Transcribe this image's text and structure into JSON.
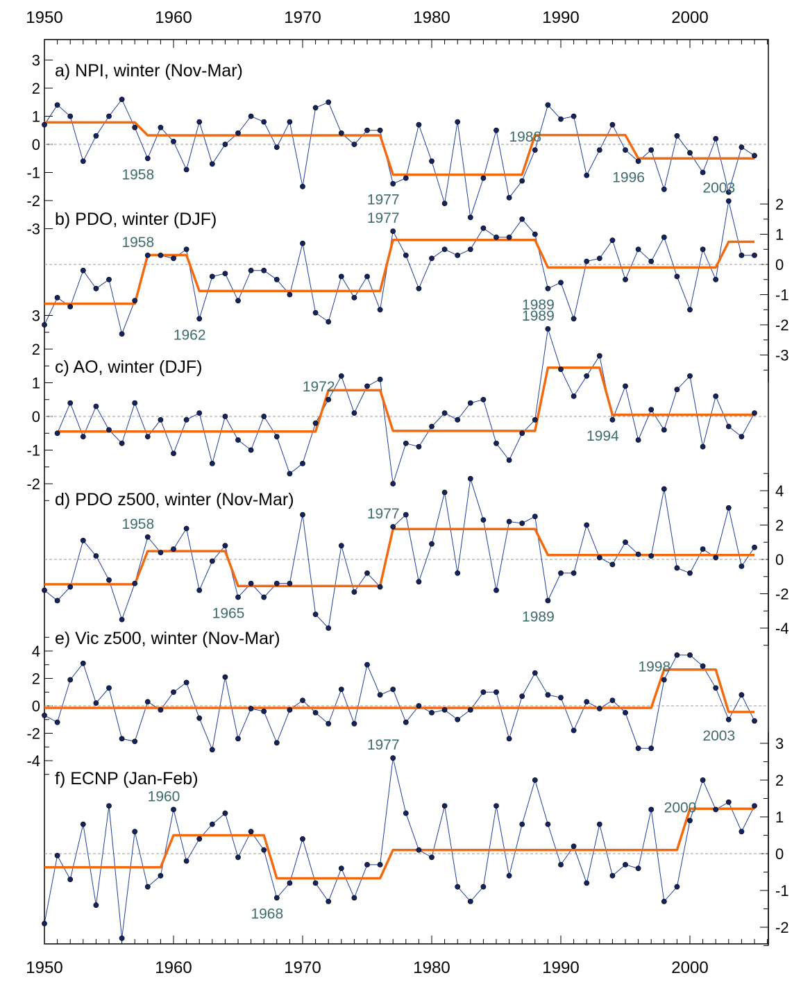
{
  "colors": {
    "series_line": "#1f3d99",
    "marker_fill": "#13235e",
    "regime_line": "#f26a10",
    "annotation_text": "#3d6b6b",
    "zero_line": "#9a9a9a",
    "frame": "#000000"
  },
  "chart_data": [
    {
      "type": "line",
      "title": "a) NPI, winter (Nov-Mar)",
      "y_axis_side": "left",
      "ytick_labels": [
        "3",
        "2",
        "1",
        "0",
        "-1",
        "-2",
        "-3"
      ],
      "x": [
        1950,
        1951,
        1952,
        1953,
        1954,
        1955,
        1956,
        1957,
        1958,
        1959,
        1960,
        1961,
        1962,
        1963,
        1964,
        1965,
        1966,
        1967,
        1968,
        1969,
        1970,
        1971,
        1972,
        1973,
        1974,
        1975,
        1976,
        1977,
        1978,
        1979,
        1980,
        1981,
        1982,
        1983,
        1984,
        1985,
        1986,
        1987,
        1988,
        1989,
        1990,
        1991,
        1992,
        1993,
        1994,
        1995,
        1996,
        1997,
        1998,
        1999,
        2000,
        2001,
        2002,
        2003,
        2004,
        2005
      ],
      "series": [
        {
          "values": [
            0.7,
            1.4,
            1.0,
            -0.6,
            0.3,
            1.0,
            1.6,
            0.6,
            -0.5,
            0.6,
            0.1,
            -0.9,
            0.8,
            -0.7,
            0.0,
            0.4,
            1.0,
            0.8,
            -0.1,
            0.8,
            -1.5,
            1.3,
            1.5,
            0.4,
            0.0,
            0.5,
            0.5,
            -1.4,
            -1.2,
            0.7,
            -0.6,
            -2.1,
            0.8,
            -2.6,
            -1.2,
            0.5,
            -1.9,
            -1.3,
            -0.2,
            1.4,
            0.9,
            1.0,
            -1.1,
            -0.2,
            0.7,
            -0.2,
            -0.6,
            -0.2,
            -1.6,
            0.3,
            -0.3,
            -1.0,
            0.2,
            -1.7,
            -0.1,
            -0.4
          ]
        }
      ],
      "regime_shifts": [
        {
          "start": 1950,
          "end": 1957,
          "mean": 0.78
        },
        {
          "start": 1958,
          "end": 1976,
          "mean": 0.32
        },
        {
          "start": 1977,
          "end": 1987,
          "mean": -1.08
        },
        {
          "start": 1988,
          "end": 1995,
          "mean": 0.33
        },
        {
          "start": 1996,
          "end": 2005,
          "mean": -0.5
        }
      ],
      "annotations": [
        {
          "text": "1958",
          "year": 1958,
          "position": "below"
        },
        {
          "text": "1977",
          "year": 1977,
          "position": "below"
        },
        {
          "text": "1988",
          "year": 1988,
          "position": "above"
        },
        {
          "text": "1996",
          "year": 1996,
          "position": "below"
        }
      ]
    },
    {
      "type": "line",
      "title": "b) PDO, winter (DJF)",
      "y_axis_side": "right",
      "ytick_labels": [
        "2",
        "1",
        "0",
        "-1",
        "-2",
        "-3"
      ],
      "x": [
        1950,
        1951,
        1952,
        1953,
        1954,
        1955,
        1956,
        1957,
        1958,
        1959,
        1960,
        1961,
        1962,
        1963,
        1964,
        1965,
        1966,
        1967,
        1968,
        1969,
        1970,
        1971,
        1972,
        1973,
        1974,
        1975,
        1976,
        1977,
        1978,
        1979,
        1980,
        1981,
        1982,
        1983,
        1984,
        1985,
        1986,
        1987,
        1988,
        1989,
        1990,
        1991,
        1992,
        1993,
        1994,
        1995,
        1996,
        1997,
        1998,
        1999,
        2000,
        2001,
        2002,
        2003,
        2004,
        2005
      ],
      "series": [
        {
          "values": [
            -2.0,
            -1.1,
            -1.4,
            -0.2,
            -0.8,
            -0.5,
            -2.3,
            -1.2,
            0.3,
            0.3,
            0.2,
            0.5,
            -1.8,
            -0.4,
            -0.3,
            -1.2,
            -0.2,
            -0.2,
            -0.5,
            -1.0,
            0.7,
            -1.6,
            -1.9,
            -0.4,
            -1.1,
            -0.4,
            -1.5,
            1.1,
            0.3,
            -0.8,
            0.2,
            0.5,
            0.3,
            0.5,
            1.2,
            0.9,
            0.9,
            1.5,
            1.0,
            -0.8,
            -0.6,
            -1.8,
            0.1,
            0.2,
            0.8,
            -0.5,
            0.5,
            0.1,
            0.9,
            -0.4,
            -1.5,
            0.5,
            -0.5,
            2.1,
            0.3,
            0.3
          ]
        }
      ],
      "regime_shifts": [
        {
          "start": 1950,
          "end": 1957,
          "mean": -1.3
        },
        {
          "start": 1958,
          "end": 1961,
          "mean": 0.31
        },
        {
          "start": 1962,
          "end": 1976,
          "mean": -0.88
        },
        {
          "start": 1977,
          "end": 1988,
          "mean": 0.81
        },
        {
          "start": 1989,
          "end": 2002,
          "mean": -0.1
        },
        {
          "start": 2003,
          "end": 2005,
          "mean": 0.75
        }
      ],
      "annotations": [
        {
          "text": "1958",
          "year": 1958,
          "position": "above"
        },
        {
          "text": "1962",
          "year": 1962,
          "position": "below"
        },
        {
          "text": "1977",
          "year": 1977,
          "position": "above"
        },
        {
          "text": "1989",
          "year": 1989,
          "position": "below"
        },
        {
          "text": "2003",
          "year": 2003,
          "position": "above"
        }
      ]
    },
    {
      "type": "line",
      "title": "c) AO, winter (DJF)",
      "y_axis_side": "left",
      "ytick_labels": [
        "3",
        "2",
        "1",
        "0",
        "-1",
        "-2"
      ],
      "x": [
        1950,
        1951,
        1952,
        1953,
        1954,
        1955,
        1956,
        1957,
        1958,
        1959,
        1960,
        1961,
        1962,
        1963,
        1964,
        1965,
        1966,
        1967,
        1968,
        1969,
        1970,
        1971,
        1972,
        1973,
        1974,
        1975,
        1976,
        1977,
        1978,
        1979,
        1980,
        1981,
        1982,
        1983,
        1984,
        1985,
        1986,
        1987,
        1988,
        1989,
        1990,
        1991,
        1992,
        1993,
        1994,
        1995,
        1996,
        1997,
        1998,
        1999,
        2000,
        2001,
        2002,
        2003,
        2004,
        2005
      ],
      "series": [
        {
          "values": [
            null,
            -0.5,
            0.4,
            -0.6,
            0.3,
            -0.4,
            -0.8,
            0.4,
            -0.6,
            -0.1,
            -1.1,
            -0.1,
            0.1,
            -1.4,
            0.0,
            -0.7,
            -1.0,
            0.0,
            -0.6,
            -1.7,
            -1.4,
            -0.2,
            0.5,
            1.2,
            0.1,
            0.9,
            1.1,
            -2.0,
            -0.8,
            -0.9,
            -0.3,
            0.1,
            -0.1,
            0.4,
            0.5,
            -0.8,
            -1.3,
            -0.5,
            -0.1,
            2.6,
            1.4,
            0.6,
            1.2,
            1.8,
            -0.1,
            0.9,
            -0.7,
            0.2,
            -0.4,
            0.8,
            1.2,
            -0.9,
            0.6,
            -0.3,
            -0.6,
            0.1
          ]
        }
      ],
      "regime_shifts": [
        {
          "start": 1951,
          "end": 1971,
          "mean": -0.45
        },
        {
          "start": 1972,
          "end": 1976,
          "mean": 0.78
        },
        {
          "start": 1977,
          "end": 1988,
          "mean": -0.43
        },
        {
          "start": 1989,
          "end": 1993,
          "mean": 1.45
        },
        {
          "start": 1994,
          "end": 2005,
          "mean": 0.05
        }
      ],
      "annotations": [
        {
          "text": "1972",
          "year": 1972,
          "position": "above"
        },
        {
          "text": "1989",
          "year": 1989,
          "position": "above"
        },
        {
          "text": "1994",
          "year": 1994,
          "position": "below"
        }
      ]
    },
    {
      "type": "line",
      "title": "d) PDO z500, winter (Nov-Mar)",
      "y_axis_side": "right",
      "ytick_labels": [
        "4",
        "2",
        "0",
        "-2",
        "-4"
      ],
      "x": [
        1950,
        1951,
        1952,
        1953,
        1954,
        1955,
        1956,
        1957,
        1958,
        1959,
        1960,
        1961,
        1962,
        1963,
        1964,
        1965,
        1966,
        1967,
        1968,
        1969,
        1970,
        1971,
        1972,
        1973,
        1974,
        1975,
        1976,
        1977,
        1978,
        1979,
        1980,
        1981,
        1982,
        1983,
        1984,
        1985,
        1986,
        1987,
        1988,
        1989,
        1990,
        1991,
        1992,
        1993,
        1994,
        1995,
        1996,
        1997,
        1998,
        1999,
        2000,
        2001,
        2002,
        2003,
        2004,
        2005
      ],
      "series": [
        {
          "values": [
            -1.8,
            -2.4,
            -1.6,
            1.1,
            0.2,
            -1.2,
            -3.5,
            -1.4,
            1.3,
            0.4,
            0.6,
            1.8,
            -1.8,
            -0.1,
            0.8,
            -2.2,
            -1.4,
            -2.2,
            -1.4,
            -1.4,
            2.6,
            -3.2,
            -4.0,
            0.8,
            -1.9,
            -0.8,
            -1.6,
            1.9,
            2.6,
            -1.3,
            0.9,
            3.9,
            -0.8,
            4.7,
            2.3,
            -1.8,
            2.2,
            2.1,
            2.5,
            -2.4,
            -0.8,
            -0.8,
            2.0,
            0.1,
            -0.3,
            1.0,
            0.3,
            0.2,
            4.1,
            -0.5,
            -0.8,
            0.6,
            0.1,
            3.0,
            -0.4,
            0.7
          ]
        }
      ],
      "regime_shifts": [
        {
          "start": 1950,
          "end": 1957,
          "mean": -1.45
        },
        {
          "start": 1958,
          "end": 1964,
          "mean": 0.48
        },
        {
          "start": 1965,
          "end": 1976,
          "mean": -1.55
        },
        {
          "start": 1977,
          "end": 1988,
          "mean": 1.77
        },
        {
          "start": 1989,
          "end": 2005,
          "mean": 0.25
        }
      ],
      "annotations": [
        {
          "text": "1958",
          "year": 1958,
          "position": "above"
        },
        {
          "text": "1965",
          "year": 1965,
          "position": "below"
        },
        {
          "text": "1977",
          "year": 1977,
          "position": "above"
        },
        {
          "text": "1989",
          "year": 1989,
          "position": "below"
        }
      ]
    },
    {
      "type": "line",
      "title": "e) Vic z500, winter (Nov-Mar)",
      "y_axis_side": "left",
      "ytick_labels": [
        "4",
        "2",
        "0",
        "-2",
        "-4"
      ],
      "x": [
        1950,
        1951,
        1952,
        1953,
        1954,
        1955,
        1956,
        1957,
        1958,
        1959,
        1960,
        1961,
        1962,
        1963,
        1964,
        1965,
        1966,
        1967,
        1968,
        1969,
        1970,
        1971,
        1972,
        1973,
        1974,
        1975,
        1976,
        1977,
        1978,
        1979,
        1980,
        1981,
        1982,
        1983,
        1984,
        1985,
        1986,
        1987,
        1988,
        1989,
        1990,
        1991,
        1992,
        1993,
        1994,
        1995,
        1996,
        1997,
        1998,
        1999,
        2000,
        2001,
        2002,
        2003,
        2004,
        2005
      ],
      "series": [
        {
          "values": [
            -0.7,
            -1.2,
            1.9,
            3.1,
            0.2,
            1.3,
            -2.4,
            -2.6,
            0.3,
            -0.3,
            1.0,
            1.7,
            -0.9,
            -3.2,
            2.1,
            -2.4,
            -0.2,
            -0.4,
            -2.7,
            -0.3,
            0.4,
            -0.5,
            -1.3,
            1.2,
            -1.3,
            3.0,
            0.8,
            1.2,
            -1.2,
            0.0,
            -0.5,
            -0.3,
            -1.0,
            -0.3,
            1.0,
            1.0,
            -2.4,
            0.7,
            2.4,
            0.8,
            0.6,
            -1.8,
            0.3,
            -0.2,
            0.4,
            -0.5,
            -3.1,
            -3.1,
            1.9,
            3.7,
            3.7,
            2.9,
            1.3,
            -1.0,
            0.8,
            -1.1
          ]
        }
      ],
      "regime_shifts": [
        {
          "start": 1950,
          "end": 1997,
          "mean": -0.15
        },
        {
          "start": 1998,
          "end": 2002,
          "mean": 2.65
        },
        {
          "start": 2003,
          "end": 2005,
          "mean": -0.45
        }
      ],
      "annotations": [
        {
          "text": "1998",
          "year": 1998,
          "position": "above"
        },
        {
          "text": "2003",
          "year": 2003,
          "position": "below"
        }
      ]
    },
    {
      "type": "line",
      "title": "f) ECNP (Jan-Feb)",
      "y_axis_side": "right",
      "ytick_labels": [
        "3",
        "2",
        "1",
        "0",
        "-1",
        "-2"
      ],
      "x": [
        1950,
        1951,
        1952,
        1953,
        1954,
        1955,
        1956,
        1957,
        1958,
        1959,
        1960,
        1961,
        1962,
        1963,
        1964,
        1965,
        1966,
        1967,
        1968,
        1969,
        1970,
        1971,
        1972,
        1973,
        1974,
        1975,
        1976,
        1977,
        1978,
        1979,
        1980,
        1981,
        1982,
        1983,
        1984,
        1985,
        1986,
        1987,
        1988,
        1989,
        1990,
        1991,
        1992,
        1993,
        1994,
        1995,
        1996,
        1997,
        1998,
        1999,
        2000,
        2001,
        2002,
        2003,
        2004,
        2005
      ],
      "series": [
        {
          "values": [
            -1.9,
            -0.05,
            -0.7,
            0.8,
            -1.4,
            1.3,
            -2.3,
            0.6,
            -0.9,
            -0.6,
            1.2,
            -0.2,
            0.4,
            0.8,
            1.1,
            -0.1,
            0.6,
            0.1,
            -1.2,
            -0.8,
            0.4,
            -0.8,
            -1.3,
            -0.4,
            -1.2,
            -0.3,
            -0.3,
            2.6,
            1.1,
            0.1,
            -0.1,
            1.3,
            -0.9,
            -1.3,
            -0.9,
            1.3,
            -0.6,
            0.8,
            2.0,
            0.8,
            -0.3,
            0.2,
            -0.8,
            0.8,
            -0.6,
            -0.3,
            -0.4,
            1.2,
            -1.3,
            -0.9,
            0.9,
            2.0,
            1.2,
            1.4,
            0.6,
            1.3
          ]
        }
      ],
      "regime_shifts": [
        {
          "start": 1950,
          "end": 1959,
          "mean": -0.37
        },
        {
          "start": 1960,
          "end": 1967,
          "mean": 0.5
        },
        {
          "start": 1968,
          "end": 1976,
          "mean": -0.67
        },
        {
          "start": 1977,
          "end": 1999,
          "mean": 0.1
        },
        {
          "start": 2000,
          "end": 2005,
          "mean": 1.22
        }
      ],
      "annotations": [
        {
          "text": "1960",
          "year": 1960,
          "position": "above"
        },
        {
          "text": "1968",
          "year": 1968,
          "position": "below"
        },
        {
          "text": "1977",
          "year": 1977,
          "position": "above"
        },
        {
          "text": "2000",
          "year": 2000,
          "position": "above"
        }
      ]
    }
  ],
  "x_axis": {
    "range": [
      1950,
      2006
    ],
    "major_tick_labels": [
      "1950",
      "1960",
      "1970",
      "1980",
      "1990",
      "2000"
    ]
  }
}
